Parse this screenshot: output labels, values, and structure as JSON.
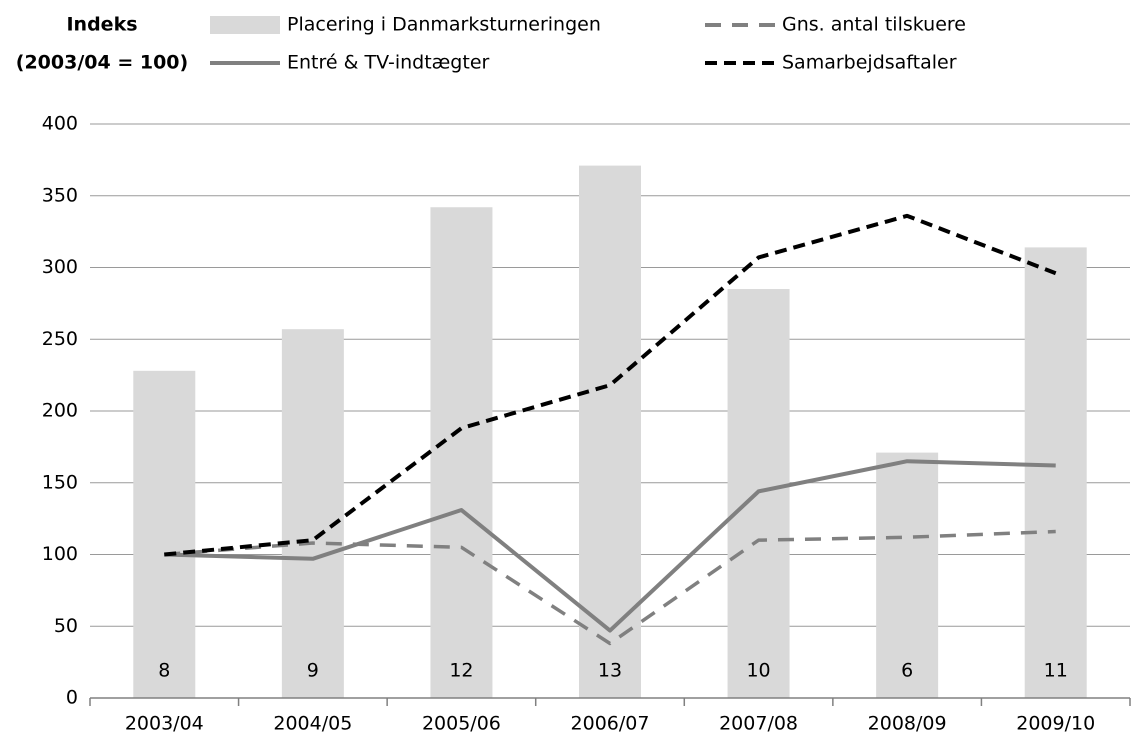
{
  "chart_data": {
    "type": "bar-line",
    "ylabel": [
      "Indeks",
      "(2003/04 = 100)"
    ],
    "categories": [
      "2003/04",
      "2004/05",
      "2005/06",
      "2006/07",
      "2007/08",
      "2008/09",
      "2009/10"
    ],
    "series": [
      {
        "name": "Placering i Danmarksturneringen",
        "type": "bar",
        "color": "#d9d9d9",
        "values": [
          228,
          257,
          342,
          371,
          285,
          171,
          314
        ],
        "placements": [
          8,
          9,
          12,
          13,
          10,
          6,
          11
        ]
      },
      {
        "name": "Entré & TV-indtægter",
        "type": "line",
        "color": "#808080",
        "dash": "solid",
        "values": [
          100,
          97,
          131,
          47,
          144,
          165,
          162
        ]
      },
      {
        "name": "Gns. antal tilskuere",
        "type": "line",
        "color": "#808080",
        "dash": "dashed",
        "values": [
          100,
          108,
          105,
          38,
          110,
          112,
          116
        ]
      },
      {
        "name": "Samarbejdsaftaler",
        "type": "line",
        "color": "#000000",
        "dash": "dashed",
        "values": [
          100,
          110,
          188,
          218,
          307,
          336,
          296
        ]
      }
    ],
    "ylim": [
      0,
      400
    ],
    "yticks": [
      0,
      50,
      100,
      150,
      200,
      250,
      300,
      350,
      400
    ],
    "grid": true
  }
}
